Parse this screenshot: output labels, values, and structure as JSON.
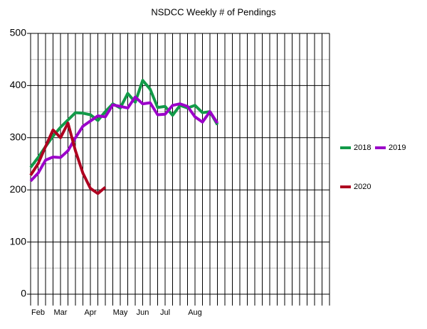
{
  "chart_data": {
    "type": "line",
    "title": "NSDCC Weekly # of Pendings",
    "categories": [
      null,
      "Feb",
      null,
      null,
      "Mar",
      null,
      null,
      null,
      "Apr",
      null,
      null,
      null,
      "May",
      null,
      null,
      "Jun",
      null,
      null,
      "Jul",
      null,
      null,
      null,
      "Aug",
      null,
      null,
      null,
      null,
      null,
      null,
      null,
      null,
      null,
      null,
      null,
      null,
      null,
      null,
      null,
      null,
      null,
      null
    ],
    "series": [
      {
        "name": "2018",
        "color": "#129a48",
        "values": [
          243,
          262,
          283,
          303,
          320,
          334,
          348,
          347,
          344,
          333,
          350,
          365,
          357,
          385,
          368,
          410,
          393,
          358,
          360,
          343,
          362,
          357,
          362,
          348,
          350,
          325,
          null,
          null,
          null,
          null,
          null,
          null,
          null,
          null,
          null,
          null,
          null,
          null,
          null,
          null,
          null
        ]
      },
      {
        "name": "2019",
        "color": "#9b00c9",
        "values": [
          217,
          232,
          257,
          263,
          262,
          275,
          300,
          322,
          332,
          342,
          340,
          363,
          360,
          357,
          378,
          365,
          367,
          344,
          345,
          362,
          365,
          360,
          340,
          330,
          350,
          328,
          null,
          null,
          null,
          null,
          null,
          null,
          null,
          null,
          null,
          null,
          null,
          null,
          null,
          null,
          null
        ]
      },
      {
        "name": "2020",
        "color": "#ae0020",
        "values": [
          228,
          250,
          283,
          315,
          300,
          328,
          275,
          232,
          203,
          193,
          205,
          null,
          null,
          null,
          null,
          null,
          null,
          null,
          null,
          null,
          null,
          null,
          null,
          null,
          null,
          null,
          null,
          null,
          null,
          null,
          null,
          null,
          null,
          null,
          null,
          null,
          null,
          null,
          null,
          null,
          null
        ]
      }
    ],
    "ylim": [
      0,
      500
    ],
    "yticks": [
      0,
      100,
      200,
      300,
      400,
      500
    ],
    "grid": true,
    "minor_grid": true,
    "legend": "right"
  }
}
